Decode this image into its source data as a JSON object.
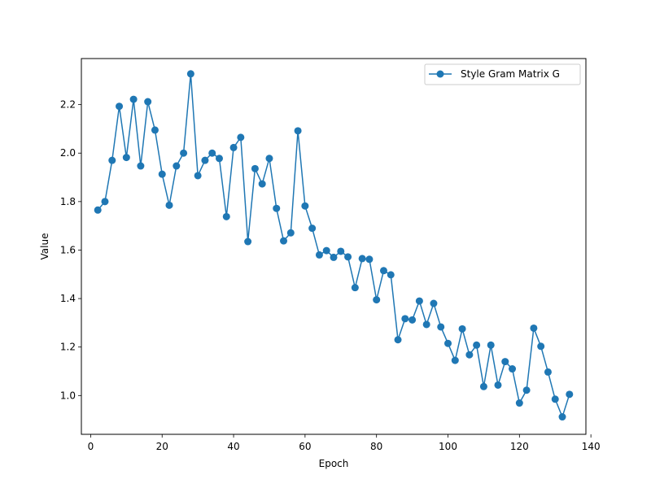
{
  "chart_data": {
    "type": "line",
    "xlabel": "Epoch",
    "ylabel": "Value",
    "xlim": [
      -2.6,
      138.6
    ],
    "ylim": [
      0.84,
      2.39
    ],
    "x_ticks": [
      0,
      20,
      40,
      60,
      80,
      100,
      120,
      140
    ],
    "y_ticks": [
      1.0,
      1.2,
      1.4,
      1.6,
      1.8,
      2.0,
      2.2
    ],
    "x_tick_labels": [
      "0",
      "20",
      "40",
      "60",
      "80",
      "100",
      "120",
      "140"
    ],
    "y_tick_labels": [
      "1.0",
      "1.2",
      "1.4",
      "1.6",
      "1.8",
      "2.0",
      "2.2"
    ],
    "grid": false,
    "legend_position": "top-right",
    "colors": {
      "series": "#1f77b4",
      "axis": "#000000"
    },
    "series": [
      {
        "name": "Style Gram Matrix G",
        "marker": "circle",
        "x": [
          2,
          4,
          6,
          8,
          10,
          12,
          14,
          16,
          18,
          20,
          22,
          24,
          26,
          28,
          30,
          32,
          34,
          36,
          38,
          40,
          42,
          44,
          46,
          48,
          50,
          52,
          54,
          56,
          58,
          60,
          62,
          64,
          66,
          68,
          70,
          72,
          74,
          76,
          78,
          80,
          82,
          84,
          86,
          88,
          90,
          92,
          94,
          96,
          98,
          100,
          102,
          104,
          106,
          108,
          110,
          112,
          114,
          116,
          118,
          120,
          122,
          124,
          126,
          128,
          130,
          132,
          134
        ],
        "y": [
          1.765,
          1.8,
          1.97,
          2.193,
          1.982,
          2.222,
          1.947,
          2.212,
          2.095,
          1.913,
          1.785,
          1.947,
          2.0,
          2.327,
          1.907,
          1.97,
          2.0,
          1.978,
          1.738,
          2.023,
          2.065,
          1.635,
          1.936,
          1.873,
          1.978,
          1.772,
          1.638,
          1.671,
          2.092,
          1.782,
          1.69,
          1.58,
          1.598,
          1.57,
          1.595,
          1.572,
          1.445,
          1.565,
          1.562,
          1.395,
          1.515,
          1.498,
          1.23,
          1.317,
          1.312,
          1.39,
          1.293,
          1.38,
          1.283,
          1.215,
          1.145,
          1.275,
          1.168,
          1.208,
          1.037,
          1.208,
          1.043,
          1.14,
          1.11,
          0.969,
          1.022,
          1.278,
          1.203,
          1.097,
          0.985,
          0.912,
          1.005
        ]
      }
    ]
  }
}
